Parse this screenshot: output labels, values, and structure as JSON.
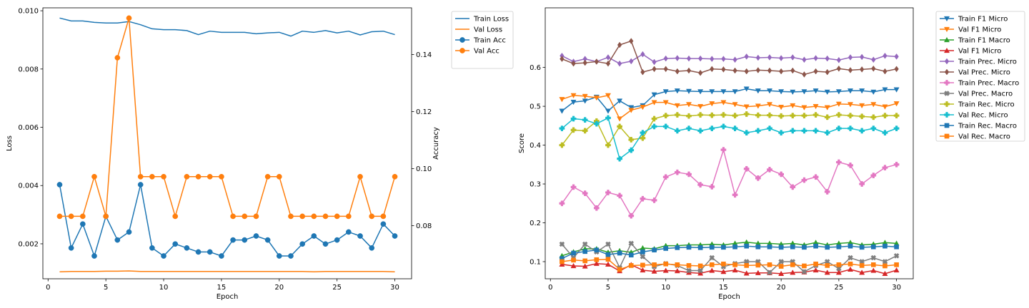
{
  "figure": {
    "background": "#ffffff"
  },
  "chart_data": [
    {
      "type": "line",
      "xlabel": "Epoch",
      "ylabel": "Loss",
      "ylabel_right": "Accuracy",
      "xlim": [
        -0.45,
        31.45
      ],
      "ylim": [
        0.0008,
        0.0101
      ],
      "ylim_right": [
        0.0614,
        0.1564
      ],
      "x_ticks": [
        0,
        5,
        10,
        15,
        20,
        25,
        30
      ],
      "y_ticks": [
        0.002,
        0.004,
        0.006,
        0.008,
        0.01
      ],
      "y_tick_labels": [
        "0.002",
        "0.004",
        "0.006",
        "0.008",
        "0.010"
      ],
      "y_right_ticks": [
        0.08,
        0.1,
        0.12,
        0.14
      ],
      "y_right_tick_labels": [
        "0.08",
        "0.10",
        "0.12",
        "0.14"
      ],
      "grid": false,
      "legend_position": "outside-top-right",
      "x": [
        1,
        2,
        3,
        4,
        5,
        6,
        7,
        8,
        9,
        10,
        11,
        12,
        13,
        14,
        15,
        16,
        17,
        18,
        19,
        20,
        21,
        22,
        23,
        24,
        25,
        26,
        27,
        28,
        29,
        30
      ],
      "series": [
        {
          "name": "Train Loss",
          "axis": "left",
          "color": "#1f77b4",
          "marker": "none",
          "values": [
            0.00975,
            0.00965,
            0.00965,
            0.0096,
            0.00958,
            0.00958,
            0.00963,
            0.00952,
            0.00938,
            0.00935,
            0.00935,
            0.00932,
            0.00918,
            0.0093,
            0.00926,
            0.00926,
            0.00926,
            0.00921,
            0.00924,
            0.00926,
            0.00913,
            0.0093,
            0.00926,
            0.00932,
            0.00924,
            0.0093,
            0.00917,
            0.00928,
            0.0093,
            0.00918
          ]
        },
        {
          "name": "Val Loss",
          "axis": "left",
          "color": "#ff7f0e",
          "marker": "none",
          "values": [
            0.00104,
            0.00105,
            0.00105,
            0.00105,
            0.00106,
            0.00106,
            0.00107,
            0.00105,
            0.00105,
            0.00105,
            0.00105,
            0.00105,
            0.00105,
            0.00105,
            0.00105,
            0.00105,
            0.00105,
            0.00105,
            0.00105,
            0.00105,
            0.00105,
            0.00105,
            0.00104,
            0.00105,
            0.00105,
            0.00105,
            0.00105,
            0.00105,
            0.00105,
            0.00104
          ]
        },
        {
          "name": "Train Acc",
          "axis": "right",
          "color": "#1f77b4",
          "marker": "circle",
          "values": [
            0.0944,
            0.0722,
            0.0806,
            0.0694,
            0.0833,
            0.075,
            0.0778,
            0.0944,
            0.0722,
            0.0694,
            0.0736,
            0.0722,
            0.0708,
            0.0708,
            0.0694,
            0.075,
            0.075,
            0.0764,
            0.075,
            0.0694,
            0.0694,
            0.0736,
            0.0764,
            0.0736,
            0.075,
            0.0778,
            0.0764,
            0.0722,
            0.0806,
            0.0764
          ]
        },
        {
          "name": "Val Acc",
          "axis": "right",
          "color": "#ff7f0e",
          "marker": "circle",
          "values": [
            0.0833,
            0.0833,
            0.0833,
            0.0972,
            0.0833,
            0.1389,
            0.1528,
            0.0972,
            0.0972,
            0.0972,
            0.0833,
            0.0972,
            0.0972,
            0.0972,
            0.0972,
            0.0833,
            0.0833,
            0.0833,
            0.0972,
            0.0972,
            0.0833,
            0.0833,
            0.0833,
            0.0833,
            0.0833,
            0.0833,
            0.0972,
            0.0833,
            0.0833,
            0.0972
          ]
        }
      ]
    },
    {
      "type": "line",
      "xlabel": "Epoch",
      "ylabel": "Score",
      "xlim": [
        -0.45,
        31.45
      ],
      "ylim": [
        0.0559,
        0.7535
      ],
      "x_ticks": [
        0,
        5,
        10,
        15,
        20,
        25,
        30
      ],
      "y_ticks": [
        0.1,
        0.2,
        0.3,
        0.4,
        0.5,
        0.6
      ],
      "y_tick_labels": [
        "0.1",
        "0.2",
        "0.3",
        "0.4",
        "0.5",
        "0.6"
      ],
      "grid": false,
      "legend_position": "outside-top-right",
      "x": [
        1,
        2,
        3,
        4,
        5,
        6,
        7,
        8,
        9,
        10,
        11,
        12,
        13,
        14,
        15,
        16,
        17,
        18,
        19,
        20,
        21,
        22,
        23,
        24,
        25,
        26,
        27,
        28,
        29,
        30
      ],
      "series": [
        {
          "name": "Train F1 Micro",
          "color": "#1f77b4",
          "marker": "triangle-down",
          "values": [
            0.488,
            0.511,
            0.514,
            0.524,
            0.488,
            0.514,
            0.497,
            0.502,
            0.53,
            0.538,
            0.54,
            0.539,
            0.538,
            0.538,
            0.538,
            0.538,
            0.545,
            0.54,
            0.54,
            0.538,
            0.537,
            0.538,
            0.54,
            0.537,
            0.538,
            0.54,
            0.54,
            0.537,
            0.543,
            0.543
          ]
        },
        {
          "name": "Val F1 Micro",
          "color": "#ff7f0e",
          "marker": "triangle-down",
          "values": [
            0.518,
            0.528,
            0.526,
            0.522,
            0.528,
            0.468,
            0.49,
            0.498,
            0.51,
            0.51,
            0.502,
            0.505,
            0.5,
            0.507,
            0.51,
            0.505,
            0.499,
            0.501,
            0.505,
            0.498,
            0.502,
            0.497,
            0.5,
            0.497,
            0.506,
            0.505,
            0.502,
            0.505,
            0.499,
            0.507
          ]
        },
        {
          "name": "Train F1 Macro",
          "color": "#2ca02c",
          "marker": "triangle-up",
          "values": [
            0.115,
            0.125,
            0.133,
            0.133,
            0.124,
            0.128,
            0.124,
            0.135,
            0.133,
            0.141,
            0.141,
            0.143,
            0.143,
            0.145,
            0.143,
            0.147,
            0.15,
            0.147,
            0.147,
            0.145,
            0.147,
            0.143,
            0.149,
            0.143,
            0.147,
            0.149,
            0.143,
            0.145,
            0.149,
            0.147
          ]
        },
        {
          "name": "Val F1 Micro",
          "color": "#d62728",
          "marker": "triangle-up",
          "values": [
            0.093,
            0.089,
            0.088,
            0.095,
            0.093,
            0.076,
            0.092,
            0.078,
            0.075,
            0.077,
            0.076,
            0.072,
            0.07,
            0.077,
            0.074,
            0.078,
            0.07,
            0.071,
            0.071,
            0.069,
            0.072,
            0.073,
            0.078,
            0.072,
            0.072,
            0.08,
            0.072,
            0.077,
            0.069,
            0.078
          ]
        },
        {
          "name": "Train Prec. Micro",
          "color": "#9467bd",
          "marker": "diamond",
          "values": [
            0.63,
            0.615,
            0.622,
            0.615,
            0.626,
            0.61,
            0.616,
            0.634,
            0.614,
            0.623,
            0.624,
            0.623,
            0.623,
            0.622,
            0.622,
            0.62,
            0.628,
            0.625,
            0.626,
            0.624,
            0.626,
            0.62,
            0.624,
            0.623,
            0.619,
            0.626,
            0.627,
            0.62,
            0.63,
            0.628
          ]
        },
        {
          "name": "Val Prec. Micro",
          "color": "#8c564b",
          "marker": "diamond",
          "values": [
            0.622,
            0.61,
            0.612,
            0.615,
            0.61,
            0.658,
            0.668,
            0.588,
            0.596,
            0.596,
            0.59,
            0.592,
            0.586,
            0.596,
            0.595,
            0.592,
            0.59,
            0.593,
            0.592,
            0.59,
            0.592,
            0.582,
            0.59,
            0.588,
            0.597,
            0.593,
            0.595,
            0.597,
            0.59,
            0.596
          ]
        },
        {
          "name": "Train Prec. Macro",
          "color": "#e377c2",
          "marker": "plus-filled",
          "values": [
            0.25,
            0.292,
            0.276,
            0.238,
            0.278,
            0.27,
            0.218,
            0.262,
            0.258,
            0.318,
            0.33,
            0.325,
            0.298,
            0.293,
            0.388,
            0.272,
            0.339,
            0.315,
            0.337,
            0.325,
            0.292,
            0.31,
            0.318,
            0.28,
            0.356,
            0.348,
            0.3,
            0.322,
            0.342,
            0.35
          ]
        },
        {
          "name": "Val Prec. Macro",
          "color": "#7f7f7f",
          "marker": "x-filled",
          "values": [
            0.145,
            0.11,
            0.145,
            0.125,
            0.145,
            0.085,
            0.147,
            0.113,
            0.087,
            0.095,
            0.09,
            0.077,
            0.077,
            0.11,
            0.087,
            0.095,
            0.1,
            0.1,
            0.072,
            0.1,
            0.1,
            0.074,
            0.09,
            0.1,
            0.082,
            0.11,
            0.1,
            0.11,
            0.1,
            0.115
          ]
        },
        {
          "name": "Train Rec. Micro",
          "color": "#bcbd22",
          "marker": "plus-filled",
          "values": [
            0.4,
            0.439,
            0.437,
            0.462,
            0.4,
            0.448,
            0.414,
            0.418,
            0.468,
            0.476,
            0.478,
            0.475,
            0.478,
            0.477,
            0.478,
            0.476,
            0.48,
            0.477,
            0.477,
            0.475,
            0.476,
            0.476,
            0.478,
            0.472,
            0.478,
            0.476,
            0.474,
            0.472,
            0.476,
            0.476
          ]
        },
        {
          "name": "Val Rec. Micro",
          "color": "#17becf",
          "marker": "plus-filled",
          "values": [
            0.443,
            0.468,
            0.465,
            0.455,
            0.47,
            0.365,
            0.387,
            0.432,
            0.448,
            0.448,
            0.437,
            0.443,
            0.437,
            0.443,
            0.448,
            0.443,
            0.432,
            0.437,
            0.443,
            0.432,
            0.437,
            0.437,
            0.437,
            0.432,
            0.443,
            0.443,
            0.437,
            0.443,
            0.432,
            0.443
          ]
        },
        {
          "name": "Train Rec. Macro",
          "color": "#1f77b4",
          "marker": "square",
          "values": [
            0.108,
            0.122,
            0.126,
            0.13,
            0.118,
            0.122,
            0.117,
            0.125,
            0.13,
            0.134,
            0.136,
            0.137,
            0.136,
            0.137,
            0.137,
            0.138,
            0.14,
            0.138,
            0.138,
            0.137,
            0.138,
            0.137,
            0.14,
            0.137,
            0.138,
            0.14,
            0.137,
            0.138,
            0.14,
            0.138
          ]
        },
        {
          "name": "Val Rec. Macro",
          "color": "#ff7f0e",
          "marker": "square",
          "values": [
            0.1,
            0.104,
            0.102,
            0.105,
            0.106,
            0.08,
            0.09,
            0.091,
            0.092,
            0.094,
            0.092,
            0.09,
            0.089,
            0.092,
            0.094,
            0.092,
            0.09,
            0.091,
            0.092,
            0.088,
            0.092,
            0.089,
            0.094,
            0.09,
            0.092,
            0.094,
            0.09,
            0.092,
            0.089,
            0.092
          ]
        }
      ]
    }
  ]
}
